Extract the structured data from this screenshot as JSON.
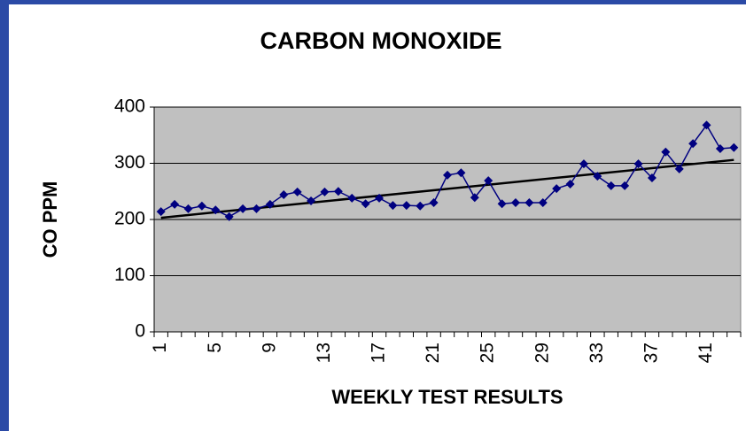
{
  "chart_data": {
    "type": "line",
    "title": "CARBON MONOXIDE",
    "x_label": "WEEKLY TEST RESULTS",
    "y_label": "CO PPM",
    "categories": [
      "1",
      null,
      null,
      null,
      "5",
      null,
      null,
      null,
      "9",
      null,
      null,
      null,
      "13",
      null,
      null,
      null,
      "17",
      null,
      null,
      null,
      "21",
      null,
      null,
      null,
      "25",
      null,
      null,
      null,
      "29",
      null,
      null,
      null,
      "33",
      null,
      null,
      null,
      "37",
      null,
      null,
      null,
      "41",
      null,
      null
    ],
    "series": [
      {
        "color": "#000080",
        "values": [
          214,
          227,
          219,
          224,
          217,
          205,
          219,
          219,
          227,
          244,
          249,
          233,
          249,
          250,
          238,
          228,
          238,
          225,
          225,
          224,
          230,
          279,
          283,
          239,
          269,
          228,
          230,
          230,
          230,
          255,
          263,
          299,
          277,
          260,
          260,
          299,
          274,
          320,
          290,
          335,
          368,
          326,
          328
        ]
      }
    ],
    "trendline": {
      "color": "#000000",
      "x": [
        1,
        43
      ],
      "values": [
        203,
        306
      ]
    },
    "ylim": [
      0,
      400
    ],
    "yticks": [
      0,
      100,
      200,
      300,
      400
    ],
    "grid": true,
    "plot_color": "#c0c0c0"
  }
}
